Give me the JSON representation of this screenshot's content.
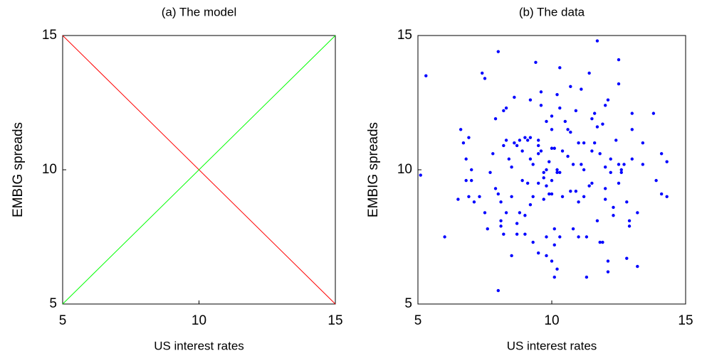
{
  "chart_data": [
    {
      "type": "line",
      "title": "(a) The model",
      "xlabel": "US interest rates",
      "ylabel": "EMBIG spreads",
      "x": [
        5,
        15
      ],
      "series": [
        {
          "color": "#ff0000",
          "values": [
            15,
            5
          ]
        },
        {
          "color": "#00ff00",
          "values": [
            5,
            15
          ]
        }
      ],
      "xlim": [
        5,
        15
      ],
      "ylim": [
        5,
        15
      ],
      "xticks": [
        5,
        10,
        15
      ],
      "yticks": [
        5,
        10,
        15
      ]
    },
    {
      "type": "scatter",
      "title": "(b) The data",
      "xlabel": "US interest rates",
      "ylabel": "EMBIG spreads",
      "series": [
        {
          "color": "#0000ff",
          "x": [
            5.3,
            5.1,
            6.0,
            6.5,
            6.6,
            6.7,
            6.8,
            6.8,
            6.9,
            6.9,
            7.0,
            7.0,
            7.1,
            7.4,
            7.5,
            7.3,
            7.5,
            7.6,
            7.7,
            7.8,
            7.9,
            7.9,
            8.0,
            8.0,
            8.1,
            8.1,
            8.1,
            8.2,
            8.3,
            8.3,
            8.2,
            8.3,
            8.2,
            8.0,
            8.4,
            8.5,
            8.5,
            8.6,
            8.6,
            8.5,
            8.7,
            8.7,
            8.7,
            8.8,
            8.8,
            8.9,
            8.9,
            9.0,
            9.0,
            9.0,
            9.1,
            9.1,
            9.2,
            9.2,
            9.2,
            9.2,
            9.3,
            9.3,
            9.3,
            9.4,
            9.5,
            9.5,
            9.5,
            9.5,
            9.5,
            9.6,
            9.6,
            9.6,
            9.7,
            9.7,
            9.7,
            9.8,
            9.8,
            9.8,
            9.8,
            9.8,
            9.9,
            9.9,
            10.0,
            10.0,
            10.0,
            10.0,
            10.0,
            10.1,
            10.1,
            10.1,
            10.0,
            10.1,
            10.2,
            10.2,
            10.2,
            10.2,
            10.3,
            10.3,
            10.3,
            10.3,
            10.4,
            10.4,
            10.5,
            10.6,
            10.6,
            10.7,
            10.7,
            10.7,
            10.8,
            10.8,
            10.9,
            10.9,
            11.0,
            11.0,
            11.0,
            11.1,
            11.1,
            11.2,
            11.2,
            11.2,
            11.3,
            11.3,
            11.4,
            11.4,
            11.5,
            11.5,
            11.5,
            11.6,
            11.6,
            11.7,
            11.7,
            11.7,
            11.8,
            11.8,
            11.9,
            11.9,
            12.0,
            12.0,
            12.0,
            12.0,
            12.1,
            12.1,
            12.1,
            12.2,
            12.2,
            12.3,
            12.3,
            12.4,
            12.5,
            12.5,
            12.5,
            12.5,
            12.6,
            12.6,
            12.7,
            12.8,
            12.8,
            12.9,
            12.9,
            13.0,
            13.0,
            13.0,
            13.2,
            13.2,
            13.4,
            13.4,
            13.8,
            13.9,
            14.1,
            14.1,
            14.3,
            14.3
          ],
          "values": [
            13.5,
            9.8,
            7.5,
            8.9,
            11.5,
            11.0,
            10.4,
            9.6,
            9.0,
            11.2,
            10.0,
            9.6,
            8.8,
            13.6,
            13.4,
            9.0,
            8.4,
            7.8,
            9.9,
            10.6,
            11.9,
            9.3,
            14.4,
            9.1,
            8.8,
            8.1,
            7.9,
            12.2,
            12.3,
            11.1,
            10.9,
            8.4,
            7.6,
            5.5,
            10.4,
            10.1,
            9.0,
            12.7,
            11.0,
            6.8,
            8.0,
            7.6,
            10.9,
            11.1,
            8.4,
            10.7,
            9.6,
            11.2,
            8.3,
            7.6,
            11.1,
            9.5,
            12.6,
            11.2,
            10.4,
            8.7,
            10.2,
            7.3,
            9.0,
            14.0,
            11.1,
            10.9,
            10.6,
            6.9,
            9.5,
            12.9,
            12.4,
            10.7,
            9.9,
            9.7,
            8.9,
            10.0,
            9.4,
            6.8,
            11.8,
            7.5,
            9.1,
            10.3,
            12.0,
            11.5,
            10.8,
            9.6,
            9.1,
            10.8,
            7.8,
            7.2,
            6.6,
            6.0,
            12.8,
            10.0,
            9.9,
            6.3,
            13.8,
            12.3,
            9.9,
            7.5,
            10.7,
            9.0,
            11.8,
            11.5,
            10.5,
            13.1,
            11.4,
            9.2,
            10.2,
            7.8,
            9.2,
            12.2,
            11.0,
            8.8,
            7.5,
            13.0,
            10.2,
            11.0,
            10.0,
            9.0,
            6.0,
            7.5,
            13.6,
            9.4,
            11.9,
            10.7,
            9.5,
            12.1,
            11.0,
            14.8,
            11.6,
            8.1,
            7.3,
            10.6,
            11.7,
            7.3,
            12.4,
            10.1,
            9.3,
            8.9,
            12.6,
            6.6,
            6.2,
            10.4,
            9.9,
            8.6,
            8.3,
            11.1,
            14.1,
            13.2,
            10.2,
            9.5,
            10.0,
            9.9,
            10.2,
            6.7,
            8.8,
            8.1,
            7.9,
            12.1,
            11.5,
            10.4,
            6.4,
            8.4,
            10.2,
            11.0,
            12.1,
            9.6,
            10.6,
            9.1,
            10.3,
            9.0
          ]
        }
      ],
      "xlim": [
        5,
        15
      ],
      "ylim": [
        5,
        15
      ],
      "xticks": [
        5,
        10,
        15
      ],
      "yticks": [
        5,
        10,
        15
      ]
    }
  ]
}
